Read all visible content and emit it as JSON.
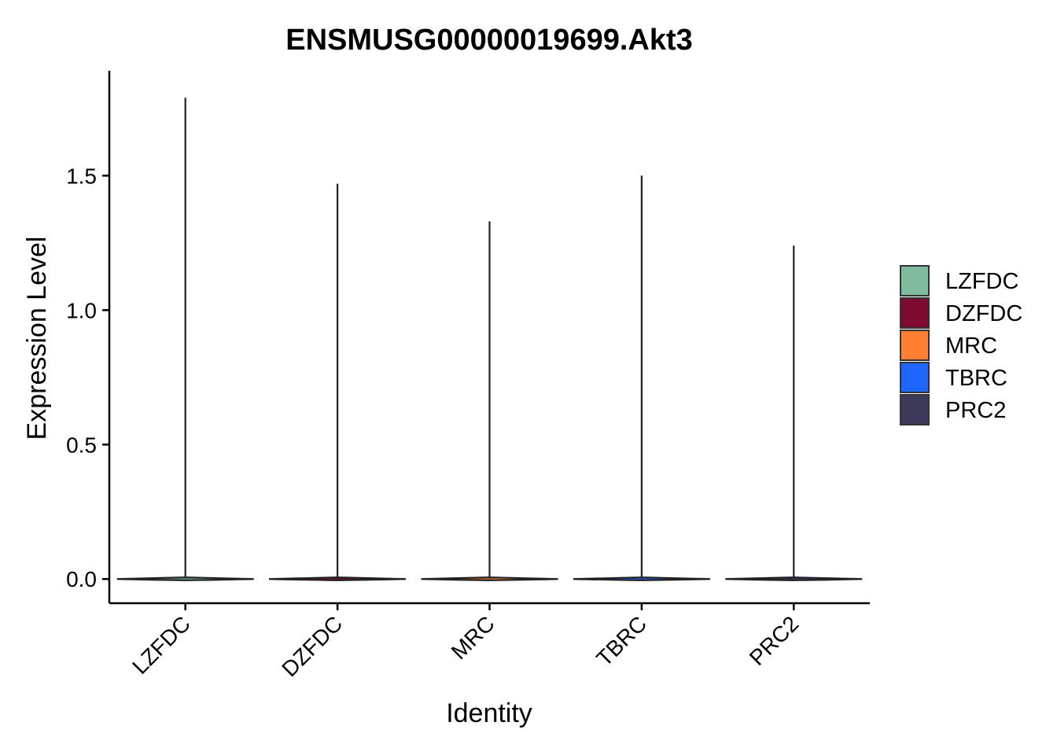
{
  "chart_data": {
    "type": "violin",
    "title": "ENSMUSG00000019699.Akt3",
    "xlabel": "Identity",
    "ylabel": "Expression Level",
    "categories": [
      "LZFDC",
      "DZFDC",
      "MRC",
      "TBRC",
      "PRC2"
    ],
    "max_values": [
      1.79,
      1.47,
      1.33,
      1.5,
      1.24
    ],
    "colors": [
      "#7DBB9C",
      "#7E0A2F",
      "#FF8033",
      "#1F66FF",
      "#3D3A5C"
    ],
    "ylim": [
      -0.09,
      1.89
    ],
    "yticks": [
      0.0,
      0.5,
      1.0,
      1.5
    ],
    "ytick_labels": [
      "0.0",
      "0.5",
      "1.0",
      "1.5"
    ],
    "grid": false,
    "legend": {
      "placement": "right",
      "entries": [
        "LZFDC",
        "DZFDC",
        "MRC",
        "TBRC",
        "PRC2"
      ]
    }
  }
}
